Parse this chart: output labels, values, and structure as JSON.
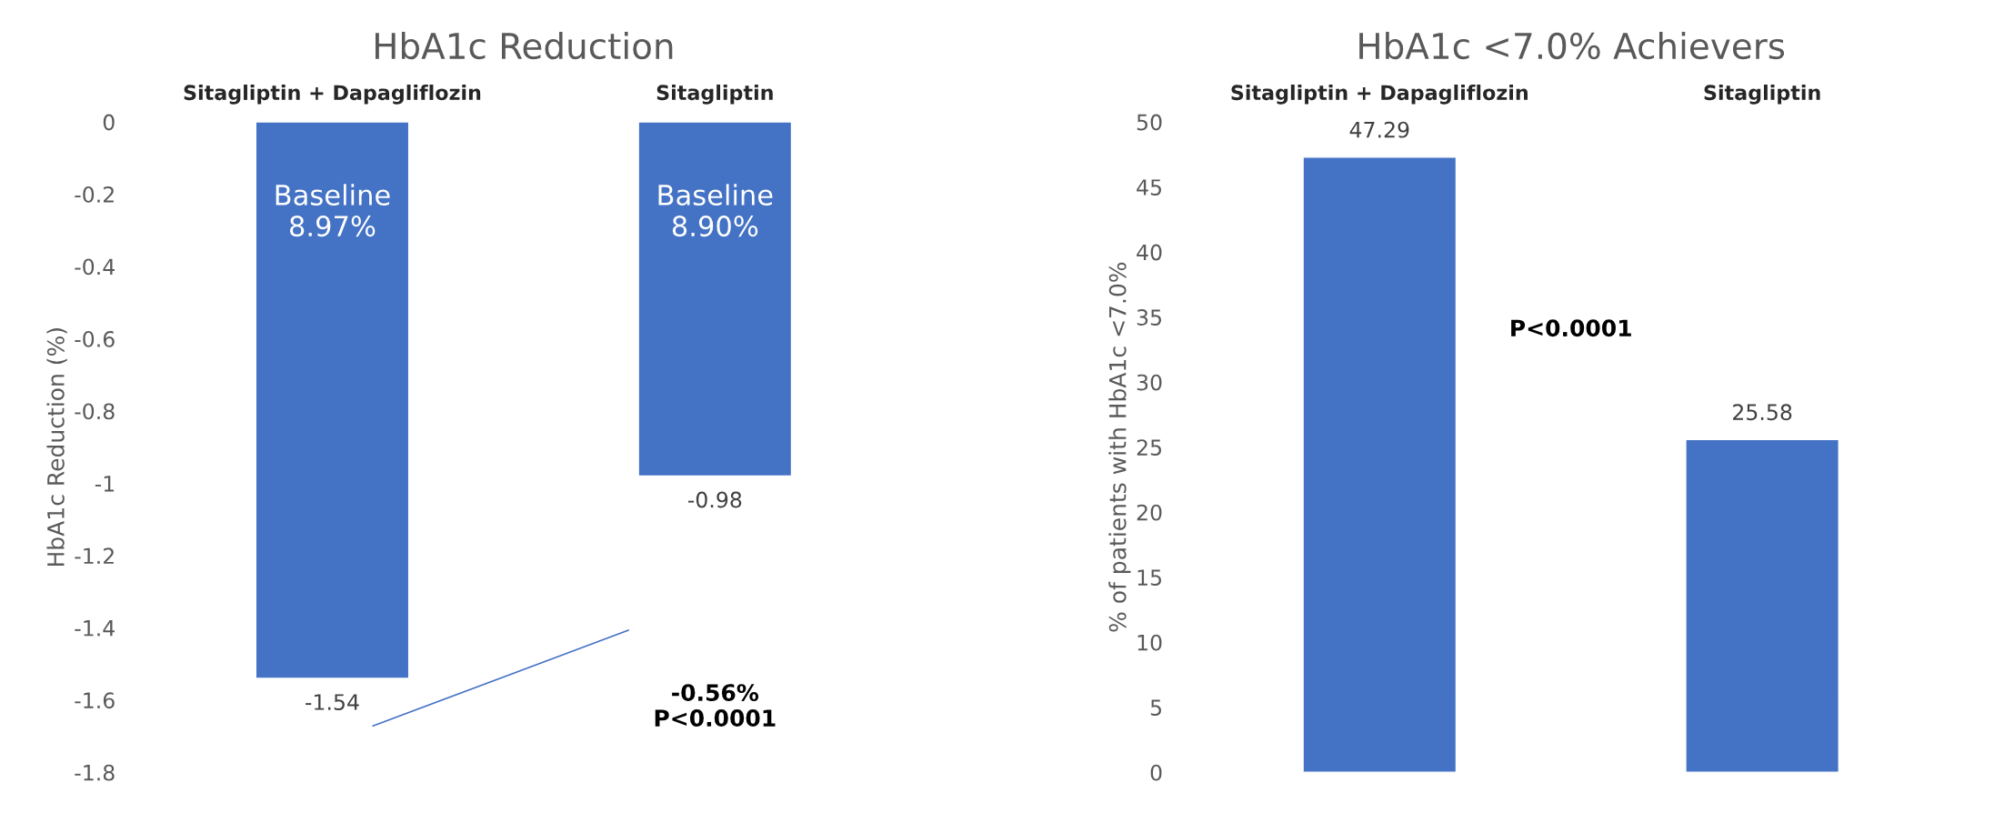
{
  "chart_data": [
    {
      "type": "bar",
      "title": "HbA1c Reduction",
      "ylabel": "HbA1c Reduction (%)",
      "categories": [
        "Sitagliptin + Dapagliflozin",
        "Sitagliptin"
      ],
      "series": [
        {
          "color": "#4472c4",
          "values": [
            -1.54,
            -0.98
          ]
        }
      ],
      "ylim": [
        -1.8,
        0
      ],
      "yticks": [
        0,
        -0.2,
        -0.4,
        -0.6,
        -0.8,
        -1,
        -1.2,
        -1.4,
        -1.6,
        -1.8
      ],
      "data_labels": true,
      "grid": false,
      "legend": false,
      "annotations": [
        "Baseline\n8.97%",
        "Baseline\n8.90%",
        "-0.56%\nP<0.0001"
      ]
    },
    {
      "type": "bar",
      "title": "HbA1c <7.0% Achievers",
      "ylabel": "% of patients with HbA1c <7.0%",
      "categories": [
        "Sitagliptin + Dapagliflozin",
        "Sitagliptin"
      ],
      "series": [
        {
          "color": "#4472c4",
          "values": [
            47.29,
            25.58
          ]
        }
      ],
      "ylim": [
        0,
        50
      ],
      "yticks": [
        0,
        5,
        10,
        15,
        20,
        25,
        30,
        35,
        40,
        45,
        50
      ],
      "data_labels": true,
      "grid": false,
      "legend": false,
      "annotations": [
        "P<0.0001"
      ]
    }
  ]
}
